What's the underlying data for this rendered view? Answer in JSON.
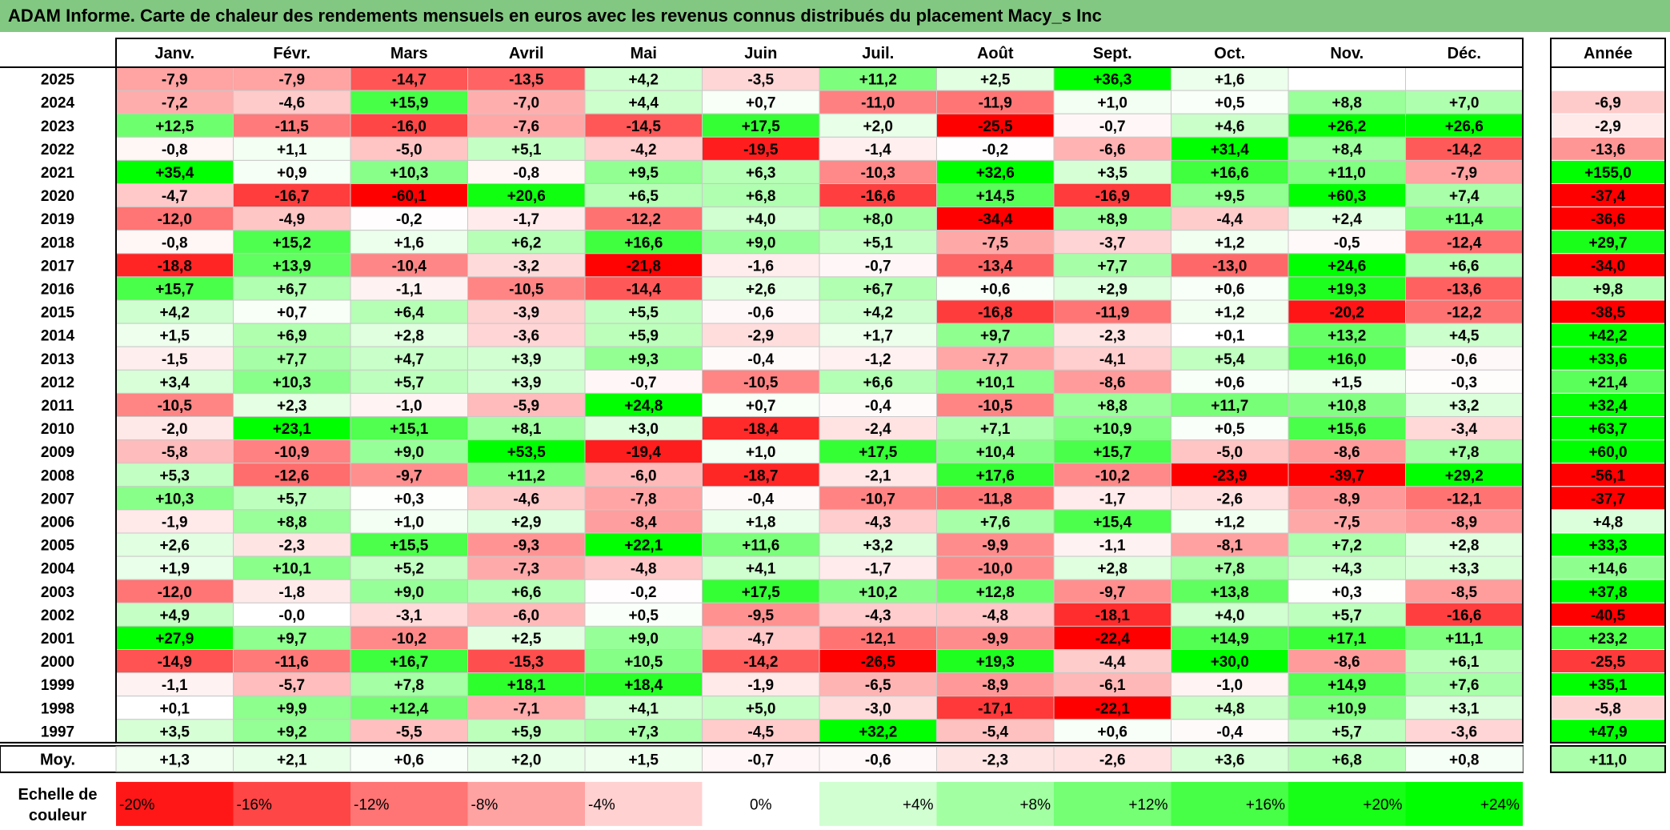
{
  "title": "ADAM Informe. Carte de chaleur des rendements mensuels en euros avec les revenus connus distribués du placement Macy_s Inc",
  "chart_data": {
    "type": "heatmap",
    "months": [
      "Janv.",
      "Févr.",
      "Mars",
      "Avril",
      "Mai",
      "Juin",
      "Juil.",
      "Août",
      "Sept.",
      "Oct.",
      "Nov.",
      "Déc."
    ],
    "year_header": "Année",
    "rows": [
      {
        "year": "2025",
        "values": [
          "-7,9",
          "-7,9",
          "-14,7",
          "-13,5",
          "+4,2",
          "-3,5",
          "+11,2",
          "+2,5",
          "+36,3",
          "+1,6",
          "",
          ""
        ],
        "annual": ""
      },
      {
        "year": "2024",
        "values": [
          "-7,2",
          "-4,6",
          "+15,9",
          "-7,0",
          "+4,4",
          "+0,7",
          "-11,0",
          "-11,9",
          "+1,0",
          "+0,5",
          "+8,8",
          "+7,0"
        ],
        "annual": "-6,9"
      },
      {
        "year": "2023",
        "values": [
          "+12,5",
          "-11,5",
          "-16,0",
          "-7,6",
          "-14,5",
          "+17,5",
          "+2,0",
          "-25,5",
          "-0,7",
          "+4,6",
          "+26,2",
          "+26,6"
        ],
        "annual": "-2,9"
      },
      {
        "year": "2022",
        "values": [
          "-0,8",
          "+1,1",
          "-5,0",
          "+5,1",
          "-4,2",
          "-19,5",
          "-1,4",
          "-0,2",
          "-6,6",
          "+31,4",
          "+8,4",
          "-14,2"
        ],
        "annual": "-13,6"
      },
      {
        "year": "2021",
        "values": [
          "+35,4",
          "+0,9",
          "+10,3",
          "-0,8",
          "+9,5",
          "+6,3",
          "-10,3",
          "+32,6",
          "+3,5",
          "+16,6",
          "+11,0",
          "-7,9"
        ],
        "annual": "+155,0"
      },
      {
        "year": "2020",
        "values": [
          "-4,7",
          "-16,7",
          "-60,1",
          "+20,6",
          "+6,5",
          "+6,8",
          "-16,6",
          "+14,5",
          "-16,9",
          "+9,5",
          "+60,3",
          "+7,4"
        ],
        "annual": "-37,4"
      },
      {
        "year": "2019",
        "values": [
          "-12,0",
          "-4,9",
          "-0,2",
          "-1,7",
          "-12,2",
          "+4,0",
          "+8,0",
          "-34,4",
          "+8,9",
          "-4,4",
          "+2,4",
          "+11,4"
        ],
        "annual": "-36,6"
      },
      {
        "year": "2018",
        "values": [
          "-0,8",
          "+15,2",
          "+1,6",
          "+6,2",
          "+16,6",
          "+9,0",
          "+5,1",
          "-7,5",
          "-3,7",
          "+1,2",
          "-0,5",
          "-12,4"
        ],
        "annual": "+29,7"
      },
      {
        "year": "2017",
        "values": [
          "-18,8",
          "+13,9",
          "-10,4",
          "-3,2",
          "-21,8",
          "-1,6",
          "-0,7",
          "-13,4",
          "+7,7",
          "-13,0",
          "+24,6",
          "+6,6"
        ],
        "annual": "-34,0"
      },
      {
        "year": "2016",
        "values": [
          "+15,7",
          "+6,7",
          "-1,1",
          "-10,5",
          "-14,4",
          "+2,6",
          "+6,7",
          "+0,6",
          "+2,9",
          "+0,6",
          "+19,3",
          "-13,6"
        ],
        "annual": "+9,8"
      },
      {
        "year": "2015",
        "values": [
          "+4,2",
          "+0,7",
          "+6,4",
          "-3,9",
          "+5,5",
          "-0,6",
          "+4,2",
          "-16,8",
          "-11,9",
          "+1,2",
          "-20,2",
          "-12,2"
        ],
        "annual": "-38,5"
      },
      {
        "year": "2014",
        "values": [
          "+1,5",
          "+6,9",
          "+2,8",
          "-3,6",
          "+5,9",
          "-2,9",
          "+1,7",
          "+9,7",
          "-2,3",
          "+0,1",
          "+13,2",
          "+4,5"
        ],
        "annual": "+42,2"
      },
      {
        "year": "2013",
        "values": [
          "-1,5",
          "+7,7",
          "+4,7",
          "+3,9",
          "+9,3",
          "-0,4",
          "-1,2",
          "-7,7",
          "-4,1",
          "+5,4",
          "+16,0",
          "-0,6"
        ],
        "annual": "+33,6"
      },
      {
        "year": "2012",
        "values": [
          "+3,4",
          "+10,3",
          "+5,7",
          "+3,9",
          "-0,7",
          "-10,5",
          "+6,6",
          "+10,1",
          "-8,6",
          "+0,6",
          "+1,5",
          "-0,3"
        ],
        "annual": "+21,4"
      },
      {
        "year": "2011",
        "values": [
          "-10,5",
          "+2,3",
          "-1,0",
          "-5,9",
          "+24,8",
          "+0,7",
          "-0,4",
          "-10,5",
          "+8,8",
          "+11,7",
          "+10,8",
          "+3,2"
        ],
        "annual": "+32,4"
      },
      {
        "year": "2010",
        "values": [
          "-2,0",
          "+23,1",
          "+15,1",
          "+8,1",
          "+3,0",
          "-18,4",
          "-2,4",
          "+7,1",
          "+10,9",
          "+0,5",
          "+15,6",
          "-3,4"
        ],
        "annual": "+63,7"
      },
      {
        "year": "2009",
        "values": [
          "-5,8",
          "-10,9",
          "+9,0",
          "+53,5",
          "-19,4",
          "+1,0",
          "+17,5",
          "+10,4",
          "+15,7",
          "-5,0",
          "-8,6",
          "+7,8"
        ],
        "annual": "+60,0"
      },
      {
        "year": "2008",
        "values": [
          "+5,3",
          "-12,6",
          "-9,7",
          "+11,2",
          "-6,0",
          "-18,7",
          "-2,1",
          "+17,6",
          "-10,2",
          "-23,9",
          "-39,7",
          "+29,2"
        ],
        "annual": "-56,1"
      },
      {
        "year": "2007",
        "values": [
          "+10,3",
          "+5,7",
          "+0,3",
          "-4,6",
          "-7,8",
          "-0,4",
          "-10,7",
          "-11,8",
          "-1,7",
          "-2,6",
          "-8,9",
          "-12,1"
        ],
        "annual": "-37,7"
      },
      {
        "year": "2006",
        "values": [
          "-1,9",
          "+8,8",
          "+1,0",
          "+2,9",
          "-8,4",
          "+1,8",
          "-4,3",
          "+7,6",
          "+15,4",
          "+1,2",
          "-7,5",
          "-8,9"
        ],
        "annual": "+4,8"
      },
      {
        "year": "2005",
        "values": [
          "+2,6",
          "-2,3",
          "+15,5",
          "-9,3",
          "+22,1",
          "+11,6",
          "+3,2",
          "-9,9",
          "-1,1",
          "-8,1",
          "+7,2",
          "+2,8"
        ],
        "annual": "+33,3"
      },
      {
        "year": "2004",
        "values": [
          "+1,9",
          "+10,1",
          "+5,2",
          "-7,3",
          "-4,8",
          "+4,1",
          "-1,7",
          "-10,0",
          "+2,8",
          "+7,8",
          "+4,3",
          "+3,3"
        ],
        "annual": "+14,6"
      },
      {
        "year": "2003",
        "values": [
          "-12,0",
          "-1,8",
          "+9,0",
          "+6,6",
          "-0,2",
          "+17,5",
          "+10,2",
          "+12,8",
          "-9,7",
          "+13,8",
          "+0,3",
          "-8,5"
        ],
        "annual": "+37,8"
      },
      {
        "year": "2002",
        "values": [
          "+4,9",
          "-0,0",
          "-3,1",
          "-6,0",
          "+0,5",
          "-9,5",
          "-4,3",
          "-4,8",
          "-18,1",
          "+4,0",
          "+5,7",
          "-16,6"
        ],
        "annual": "-40,5"
      },
      {
        "year": "2001",
        "values": [
          "+27,9",
          "+9,7",
          "-10,2",
          "+2,5",
          "+9,0",
          "-4,7",
          "-12,1",
          "-9,9",
          "-22,4",
          "+14,9",
          "+17,1",
          "+11,1"
        ],
        "annual": "+23,2"
      },
      {
        "year": "2000",
        "values": [
          "-14,9",
          "-11,6",
          "+16,7",
          "-15,3",
          "+10,5",
          "-14,2",
          "-26,5",
          "+19,3",
          "-4,4",
          "+30,0",
          "-8,6",
          "+6,1"
        ],
        "annual": "-25,5"
      },
      {
        "year": "1999",
        "values": [
          "-1,1",
          "-5,7",
          "+7,8",
          "+18,1",
          "+18,4",
          "-1,9",
          "-6,5",
          "-8,9",
          "-6,1",
          "-1,0",
          "+14,9",
          "+7,6"
        ],
        "annual": "+35,1"
      },
      {
        "year": "1998",
        "values": [
          "+0,1",
          "+9,9",
          "+12,4",
          "-7,1",
          "+4,1",
          "+5,0",
          "-3,0",
          "-17,1",
          "-22,1",
          "+4,8",
          "+10,9",
          "+3,1"
        ],
        "annual": "-5,8"
      },
      {
        "year": "1997",
        "values": [
          "+3,5",
          "+9,2",
          "-5,5",
          "+5,9",
          "+7,3",
          "-4,5",
          "+32,2",
          "-5,4",
          "+0,6",
          "-0,4",
          "+5,7",
          "-3,6"
        ],
        "annual": "+47,9"
      }
    ],
    "average": {
      "label": "Moy.",
      "values": [
        "+1,3",
        "+2,1",
        "+0,6",
        "+2,0",
        "+1,5",
        "-0,7",
        "-0,6",
        "-2,3",
        "-2,6",
        "+3,6",
        "+6,8",
        "+0,8"
      ],
      "annual": "+11,0"
    },
    "scale": {
      "label_line1": "Echelle de",
      "label_line2": "couleur",
      "steps": [
        "-20%",
        "-16%",
        "-12%",
        "-8%",
        "-4%",
        "0%",
        "+4%",
        "+8%",
        "+12%",
        "+16%",
        "+20%",
        "+24%"
      ]
    },
    "colors": {
      "title_bg": "#82c882",
      "negative_max": "#ff0000",
      "positive_max": "#00ff00",
      "neutral": "#ffffff"
    }
  }
}
